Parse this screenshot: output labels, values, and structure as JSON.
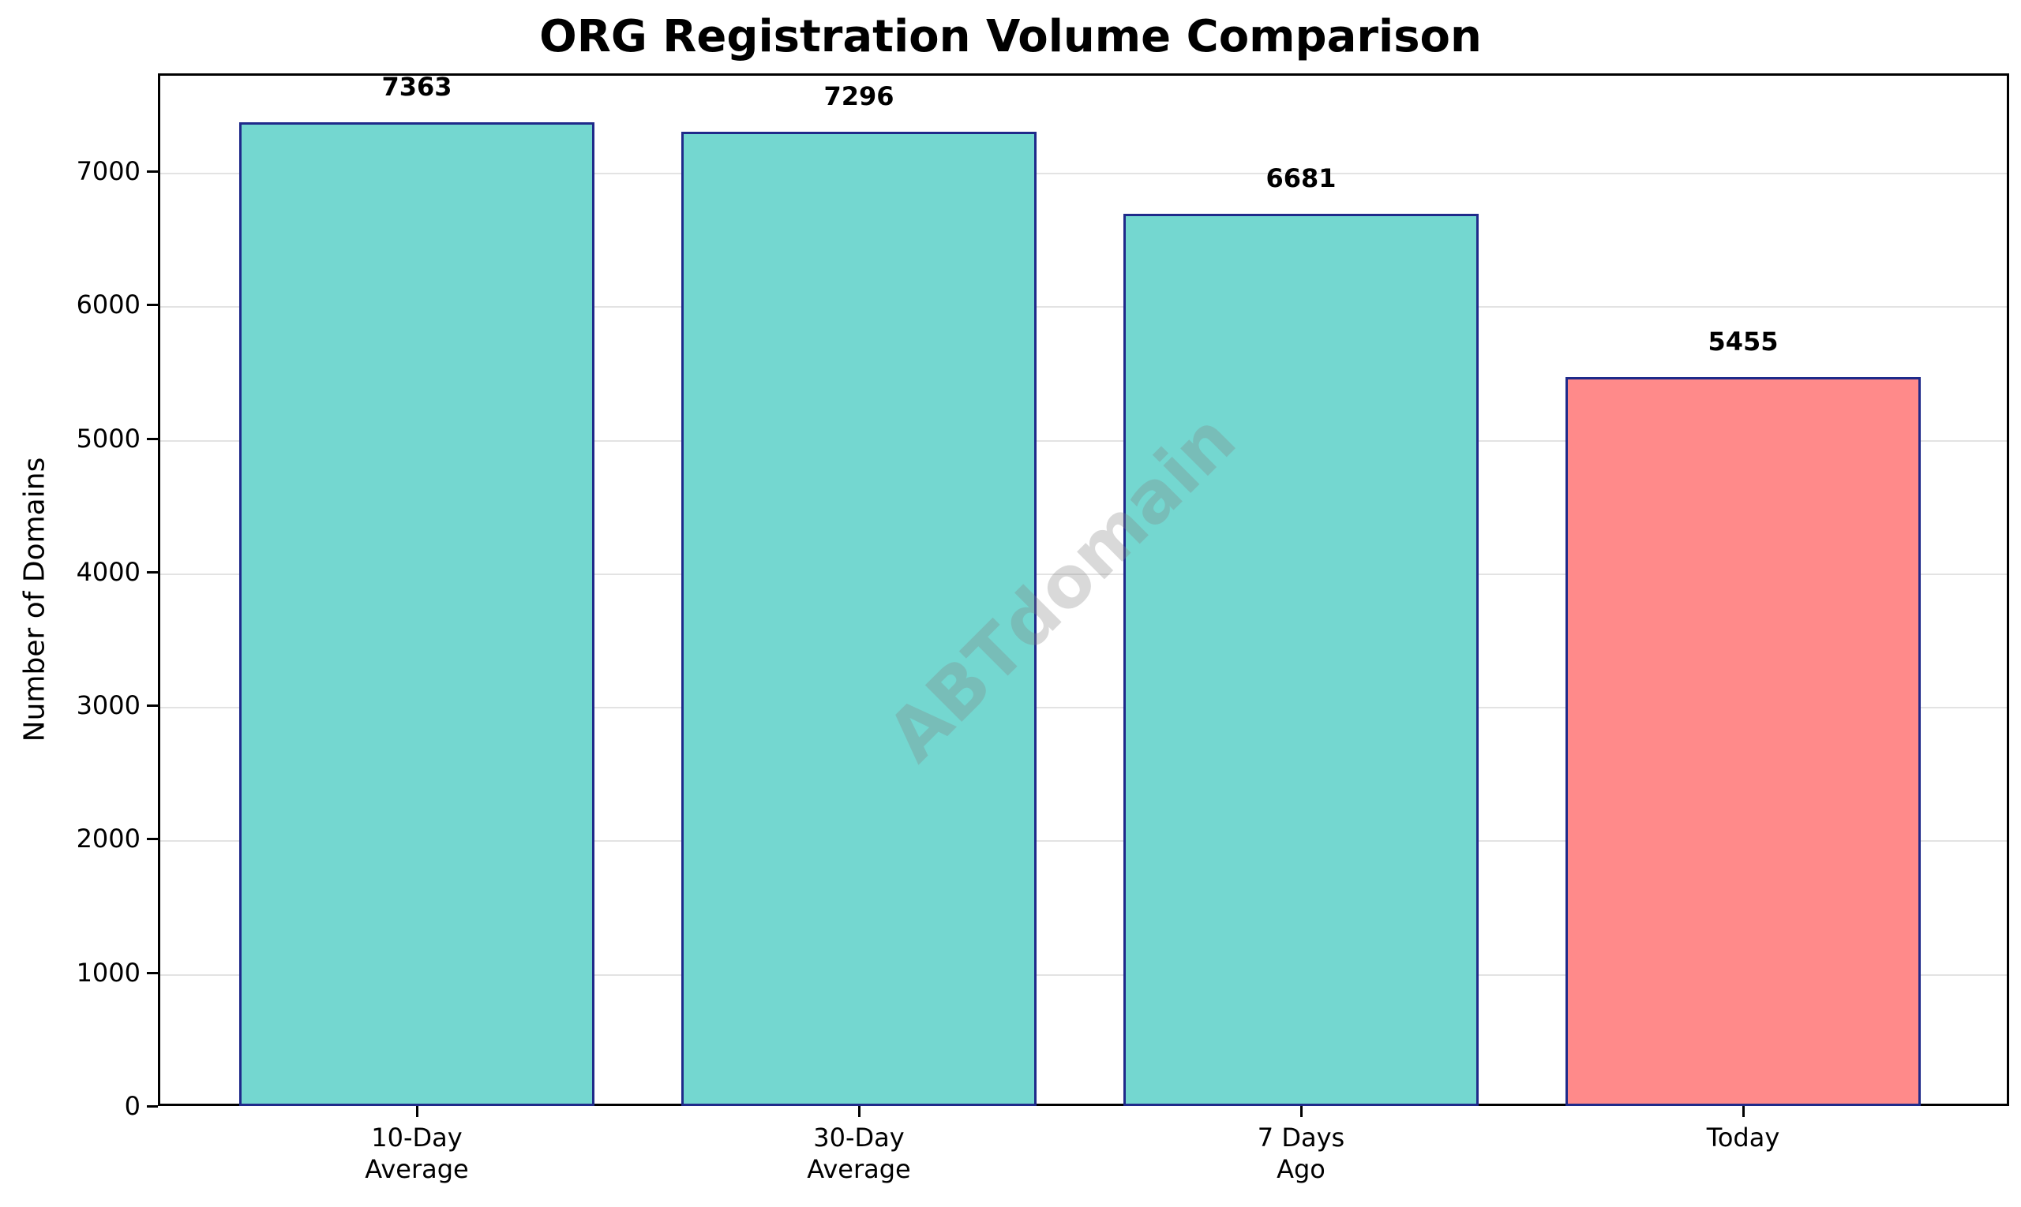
{
  "chart_data": {
    "type": "bar",
    "title": "ORG Registration Volume Comparison",
    "xlabel": "",
    "ylabel": "Number of Domains",
    "categories": [
      "10-Day\nAverage",
      "30-Day\nAverage",
      "7 Days\nAgo",
      "Today"
    ],
    "values": [
      7363,
      7296,
      6681,
      5455
    ],
    "value_labels": [
      "7363",
      "7296",
      "6681",
      "5455"
    ],
    "bar_colors": [
      "#74d7d0",
      "#74d7d0",
      "#74d7d0",
      "#ff8a8a"
    ],
    "edge_color": "#1f2a8a",
    "ylim": [
      0,
      7730
    ],
    "yticks": [
      0,
      1000,
      2000,
      3000,
      4000,
      5000,
      6000,
      7000
    ],
    "ytick_labels": [
      "0",
      "1000",
      "2000",
      "3000",
      "4000",
      "5000",
      "6000",
      "7000"
    ],
    "grid": {
      "axis": "y",
      "on": true
    },
    "legend": null
  },
  "watermark": "ABTdomain"
}
